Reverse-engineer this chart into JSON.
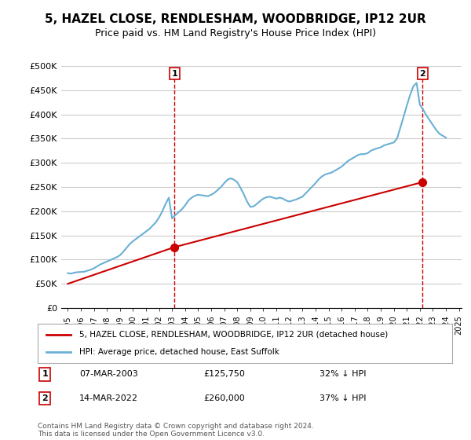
{
  "title": "5, HAZEL CLOSE, RENDLESHAM, WOODBRIDGE, IP12 2UR",
  "subtitle": "Price paid vs. HM Land Registry's House Price Index (HPI)",
  "ylabel": "",
  "ylim": [
    0,
    500000
  ],
  "yticks": [
    0,
    50000,
    100000,
    150000,
    200000,
    250000,
    300000,
    350000,
    400000,
    450000,
    500000
  ],
  "ytick_labels": [
    "£0",
    "£50K",
    "£100K",
    "£150K",
    "£200K",
    "£250K",
    "£300K",
    "£350K",
    "£400K",
    "£450K",
    "£500K"
  ],
  "hpi_color": "#6ab0d4",
  "price_color": "#cc0000",
  "marker1_color": "#cc0000",
  "marker2_color": "#cc0000",
  "legend_house_label": "5, HAZEL CLOSE, RENDLESHAM, WOODBRIDGE, IP12 2UR (detached house)",
  "legend_hpi_label": "HPI: Average price, detached house, East Suffolk",
  "transaction1_date": "07-MAR-2003",
  "transaction1_price": "£125,750",
  "transaction1_hpi": "32% ↓ HPI",
  "transaction2_date": "14-MAR-2022",
  "transaction2_price": "£260,000",
  "transaction2_hpi": "37% ↓ HPI",
  "footnote": "Contains HM Land Registry data © Crown copyright and database right 2024.\nThis data is licensed under the Open Government Licence v3.0.",
  "background_color": "#ffffff",
  "plot_bg_color": "#ffffff",
  "grid_color": "#cccccc",
  "hpi_data_x": [
    1995.0,
    1995.25,
    1995.5,
    1995.75,
    1996.0,
    1996.25,
    1996.5,
    1996.75,
    1997.0,
    1997.25,
    1997.5,
    1997.75,
    1998.0,
    1998.25,
    1998.5,
    1998.75,
    1999.0,
    1999.25,
    1999.5,
    1999.75,
    2000.0,
    2000.25,
    2000.5,
    2000.75,
    2001.0,
    2001.25,
    2001.5,
    2001.75,
    2002.0,
    2002.25,
    2002.5,
    2002.75,
    2003.0,
    2003.25,
    2003.5,
    2003.75,
    2004.0,
    2004.25,
    2004.5,
    2004.75,
    2005.0,
    2005.25,
    2005.5,
    2005.75,
    2006.0,
    2006.25,
    2006.5,
    2006.75,
    2007.0,
    2007.25,
    2007.5,
    2007.75,
    2008.0,
    2008.25,
    2008.5,
    2008.75,
    2009.0,
    2009.25,
    2009.5,
    2009.75,
    2010.0,
    2010.25,
    2010.5,
    2010.75,
    2011.0,
    2011.25,
    2011.5,
    2011.75,
    2012.0,
    2012.25,
    2012.5,
    2012.75,
    2013.0,
    2013.25,
    2013.5,
    2013.75,
    2014.0,
    2014.25,
    2014.5,
    2014.75,
    2015.0,
    2015.25,
    2015.5,
    2015.75,
    2016.0,
    2016.25,
    2016.5,
    2016.75,
    2017.0,
    2017.25,
    2017.5,
    2017.75,
    2018.0,
    2018.25,
    2018.5,
    2018.75,
    2019.0,
    2019.25,
    2019.5,
    2019.75,
    2020.0,
    2020.25,
    2020.5,
    2020.75,
    2021.0,
    2021.25,
    2021.5,
    2021.75,
    2022.0,
    2022.25,
    2022.5,
    2022.75,
    2023.0,
    2023.25,
    2023.5,
    2023.75,
    2024.0
  ],
  "hpi_data_y": [
    72000,
    71000,
    73000,
    74000,
    74500,
    75000,
    77000,
    79000,
    82000,
    86000,
    90000,
    93000,
    96000,
    99000,
    102000,
    105000,
    109000,
    116000,
    124000,
    132000,
    138000,
    143000,
    148000,
    153000,
    158000,
    163000,
    170000,
    177000,
    187000,
    200000,
    215000,
    228000,
    185000,
    192000,
    198000,
    204000,
    212000,
    222000,
    228000,
    232000,
    234000,
    233000,
    232000,
    231000,
    234000,
    238000,
    244000,
    250000,
    258000,
    265000,
    268000,
    265000,
    260000,
    248000,
    235000,
    220000,
    209000,
    210000,
    215000,
    221000,
    226000,
    229000,
    230000,
    228000,
    226000,
    228000,
    226000,
    222000,
    220000,
    222000,
    224000,
    227000,
    230000,
    237000,
    244000,
    251000,
    258000,
    266000,
    272000,
    276000,
    278000,
    280000,
    284000,
    288000,
    292000,
    298000,
    304000,
    308000,
    312000,
    316000,
    318000,
    318000,
    320000,
    325000,
    328000,
    330000,
    332000,
    336000,
    338000,
    340000,
    342000,
    350000,
    372000,
    395000,
    418000,
    440000,
    458000,
    465000,
    420000,
    410000,
    398000,
    388000,
    378000,
    368000,
    360000,
    356000,
    352000
  ],
  "price_data_x": [
    1995.0,
    2003.18,
    2022.2
  ],
  "price_data_y": [
    50000,
    125750,
    260000
  ],
  "marker1_x": 2003.18,
  "marker1_y": 125750,
  "marker2_x": 2022.2,
  "marker2_y": 260000,
  "vline1_x": 2003.18,
  "vline2_x": 2022.2,
  "xlim_left": 1994.5,
  "xlim_right": 2025.2
}
